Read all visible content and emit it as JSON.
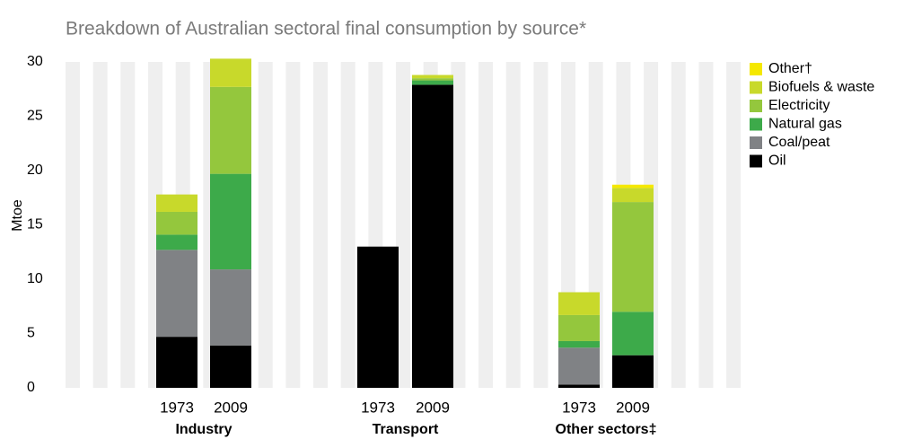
{
  "chart_data": {
    "type": "stacked_bar",
    "title": "Breakdown of Australian sectoral final consumption by source*",
    "ylabel": "Mtoe",
    "categories": [
      "1973",
      "2009",
      "1973",
      "2009",
      "1973",
      "2009"
    ],
    "groups": [
      "Industry",
      "Transport",
      "Other sectors‡"
    ],
    "series": [
      {
        "name": "Oil",
        "color": "#000000",
        "values": [
          4.7,
          3.9,
          13.0,
          27.9,
          0.3,
          3.0
        ]
      },
      {
        "name": "Coal/peat",
        "color": "#808285",
        "values": [
          8.0,
          7.0,
          0,
          0,
          3.4,
          0
        ]
      },
      {
        "name": "Natural gas",
        "color": "#3daa4a",
        "values": [
          1.4,
          8.8,
          0,
          0.4,
          0.6,
          4.0
        ]
      },
      {
        "name": "Electricity",
        "color": "#94c73d",
        "values": [
          2.1,
          8.0,
          0,
          0.2,
          2.4,
          10.1
        ]
      },
      {
        "name": "Biofuels & waste",
        "color": "#c8d92b",
        "values": [
          1.6,
          2.6,
          0,
          0.3,
          2.1,
          1.3
        ]
      },
      {
        "name": "Other†",
        "color": "#f5e800",
        "values": [
          0,
          0,
          0,
          0,
          0,
          0.3
        ]
      }
    ],
    "ylim": [
      0,
      30
    ],
    "yticks": [
      0,
      5,
      10,
      15,
      20,
      25,
      30
    ],
    "legend": "right"
  }
}
